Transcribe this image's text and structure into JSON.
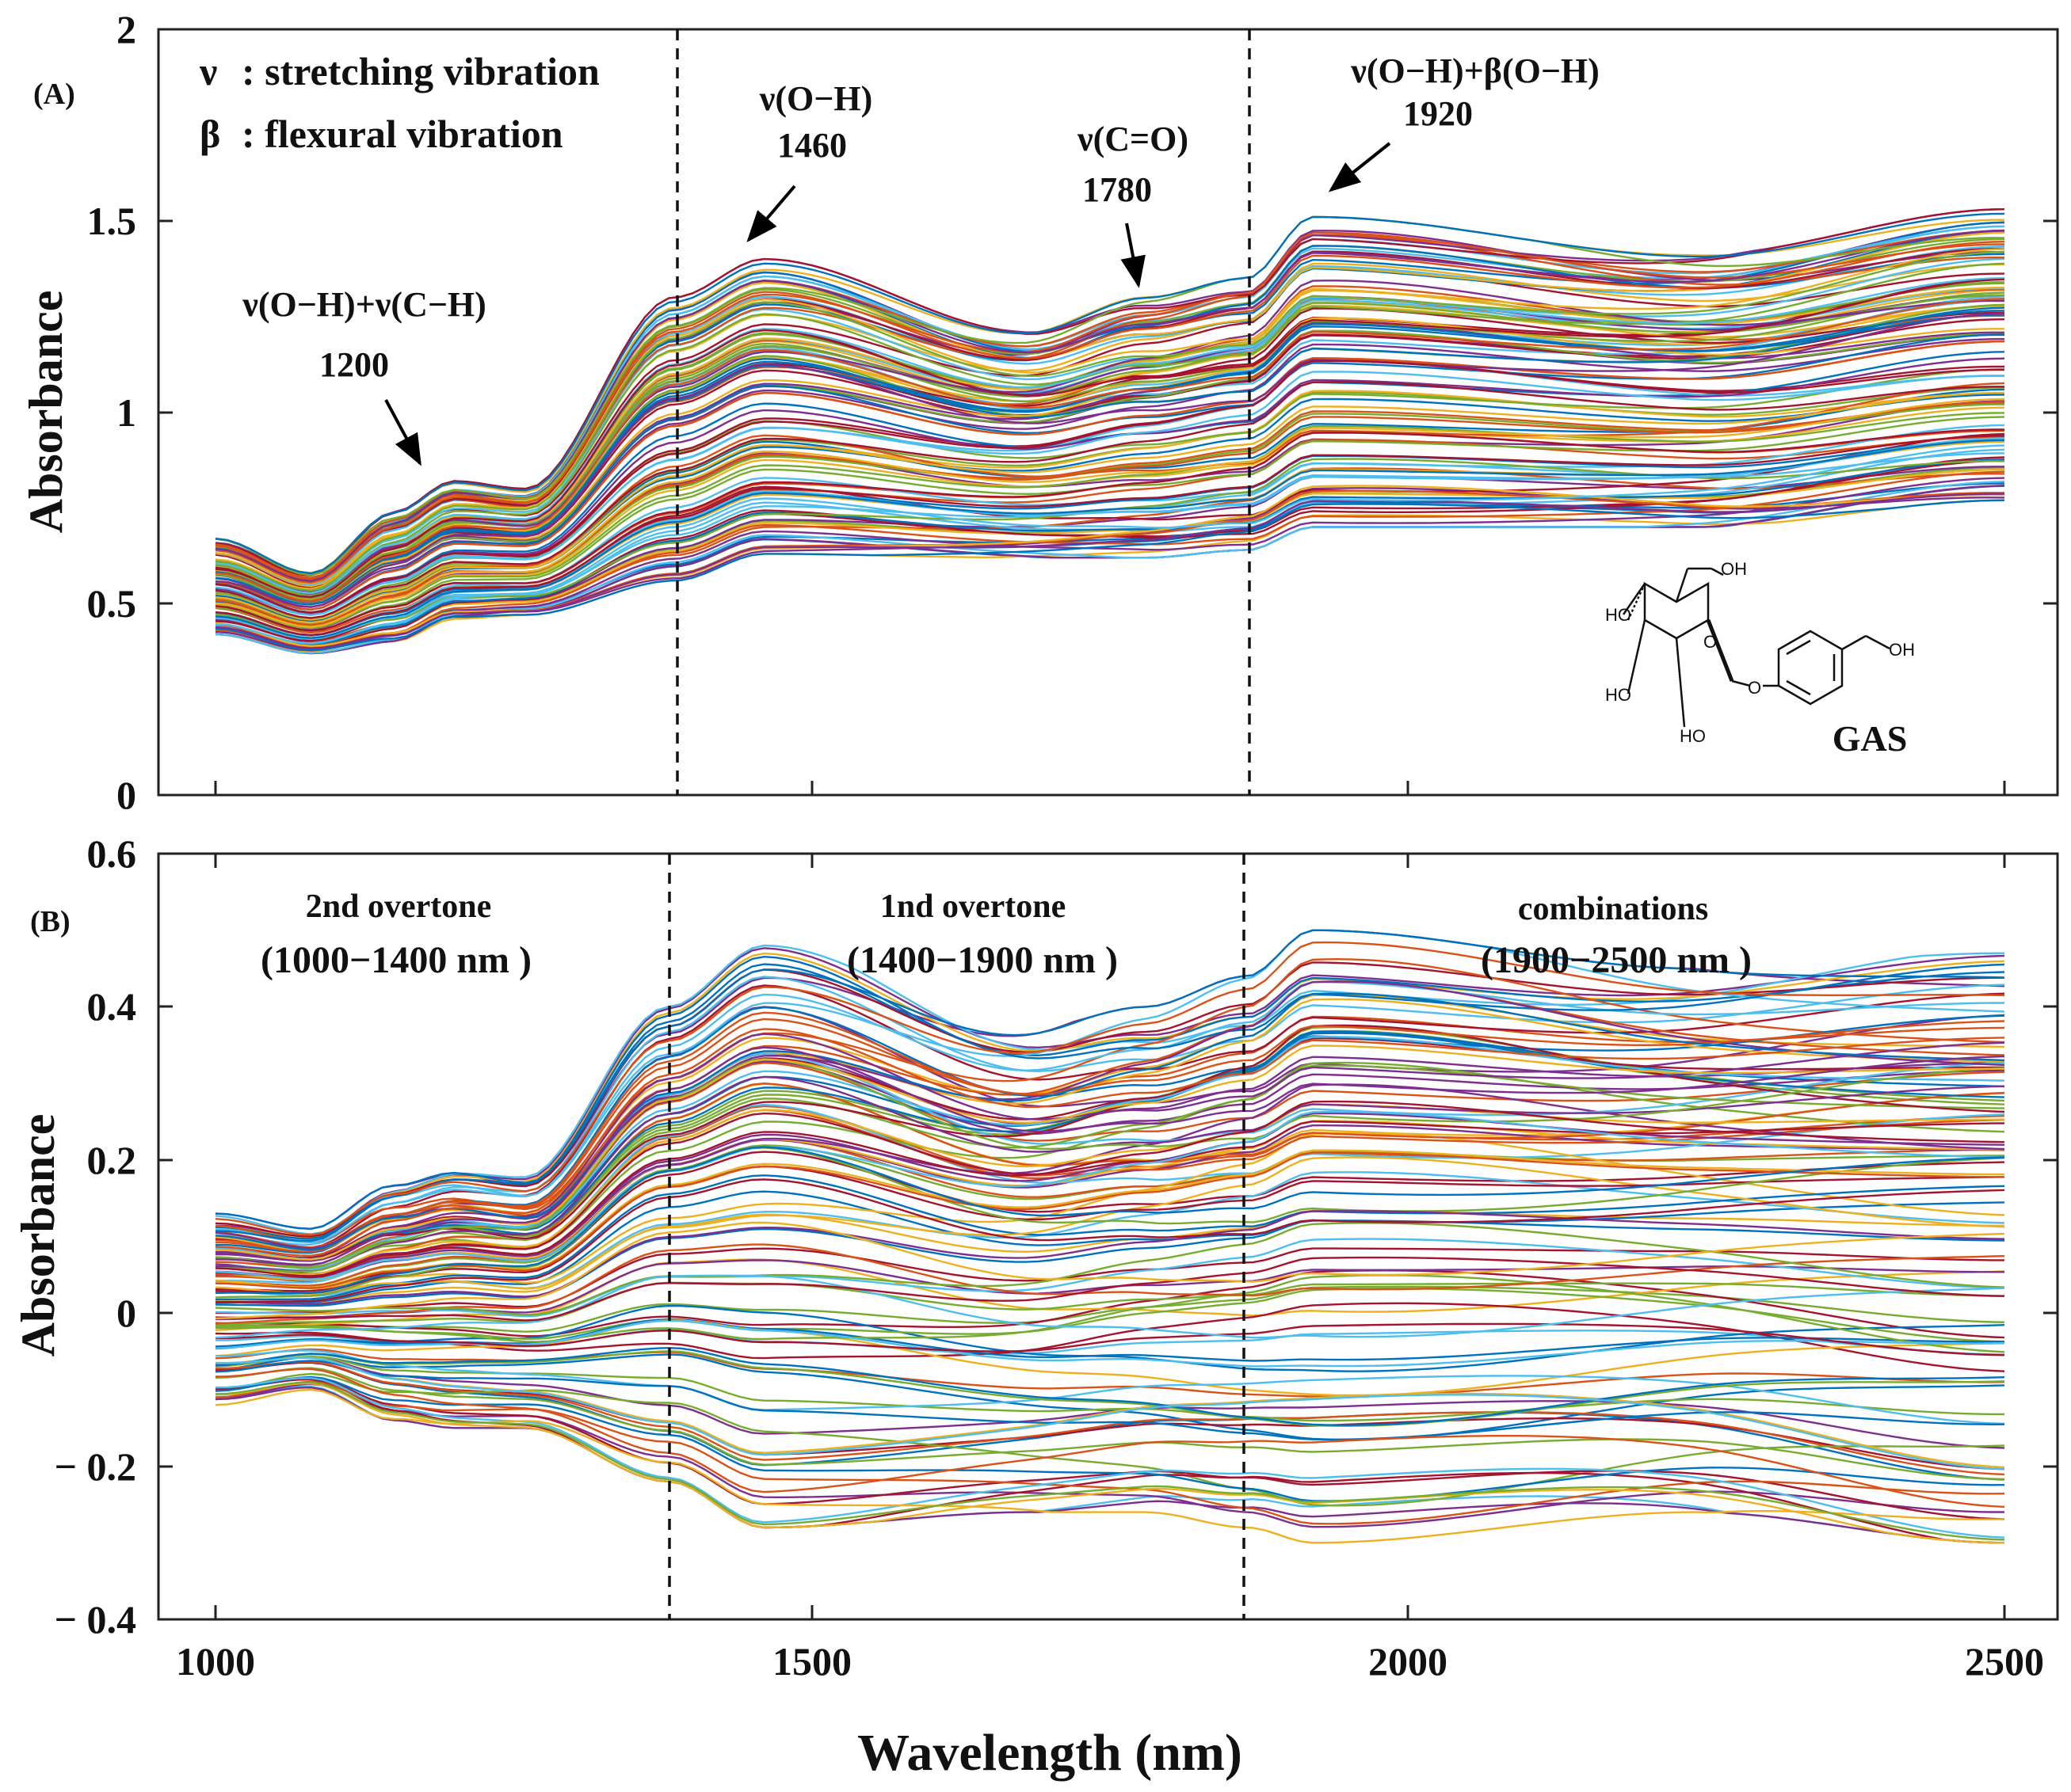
{
  "figure": {
    "xlabel": "Wavelength (nm)",
    "x_ticks": [
      "1000",
      "1500",
      "2000",
      "2500"
    ],
    "panels": [
      {
        "tag": "(A)",
        "ylabel": "Absorbance",
        "y_ticks": [
          "0",
          "0.5",
          "1",
          "1.5",
          "2"
        ],
        "legend": [
          {
            "symbol": "ν",
            "text": ": stretching vibration"
          },
          {
            "symbol": "β",
            "text": ": flexural vibration"
          }
        ],
        "annotations": [
          {
            "label": "ν(O−H)+ν(C−H)",
            "value": "1200"
          },
          {
            "label": "ν(O−H)",
            "value": "1460"
          },
          {
            "label": "ν(C=O)",
            "value": "1780"
          },
          {
            "label": "ν(O−H)+β(O−H)",
            "value": "1920"
          }
        ],
        "molecule": {
          "name": "GAS",
          "atoms": [
            "OH",
            "HO",
            "O",
            "HO",
            "HO",
            "O",
            "OH"
          ]
        }
      },
      {
        "tag": "(B)",
        "ylabel": "Absorbance",
        "y_ticks": [
          "− 0.4",
          "− 0.2",
          "0",
          "0.2",
          "0.4",
          "0.6"
        ],
        "regions": [
          {
            "name": "2nd overtone",
            "range": "(1000−1400 nm )"
          },
          {
            "name": "1nd overtone",
            "range": "(1400−1900 nm )"
          },
          {
            "name": "combinations",
            "range": "(1900−2500 nm )"
          }
        ]
      }
    ]
  },
  "chart_data": [
    {
      "type": "line",
      "panel": "A",
      "xlabel": "Wavelength (nm)",
      "ylabel": "Absorbance",
      "xlim": [
        1000,
        2500
      ],
      "ylim": [
        0,
        2
      ],
      "grid": false,
      "region_dividers_nm": [
        1385,
        1865
      ],
      "series_count": 120,
      "representative_spectrum": {
        "x": [
          1000,
          1050,
          1080,
          1120,
          1150,
          1200,
          1260,
          1300,
          1350,
          1385,
          1410,
          1460,
          1550,
          1680,
          1780,
          1840,
          1865,
          1900,
          1920,
          2000,
          2100,
          2240,
          2400,
          2500
        ],
        "y": [
          0.56,
          0.5,
          0.49,
          0.51,
          0.58,
          0.63,
          0.62,
          0.66,
          0.77,
          0.94,
          0.99,
          1.0,
          0.93,
          0.89,
          0.93,
          0.93,
          0.95,
          1.02,
          1.03,
          1.0,
          0.98,
          0.97,
          1.0,
          1.02
        ]
      },
      "envelope_upper": {
        "x": [
          1000,
          1080,
          1150,
          1200,
          1260,
          1385,
          1460,
          1680,
          1780,
          1865,
          1920,
          2240,
          2500
        ],
        "y": [
          0.67,
          0.58,
          0.74,
          0.82,
          0.8,
          1.3,
          1.4,
          1.21,
          1.3,
          1.35,
          1.51,
          1.41,
          1.53
        ]
      },
      "envelope_lower": {
        "x": [
          1000,
          1080,
          1150,
          1200,
          1260,
          1385,
          1460,
          1680,
          1780,
          1865,
          1920,
          2240,
          2500
        ],
        "y": [
          0.42,
          0.37,
          0.4,
          0.46,
          0.47,
          0.56,
          0.63,
          0.62,
          0.62,
          0.64,
          0.7,
          0.7,
          0.77
        ]
      },
      "peak_arrows": [
        {
          "label": "ν(O−H)+ν(C−H)",
          "x": 1200,
          "y": 0.84
        },
        {
          "label": "ν(O−H)",
          "x": 1460,
          "y": 1.41
        },
        {
          "label": "ν(C=O)",
          "x": 1780,
          "y": 1.31
        },
        {
          "label": "ν(O−H)+β(O−H)",
          "x": 1920,
          "y": 1.52
        }
      ]
    },
    {
      "type": "line",
      "panel": "B",
      "xlabel": "Wavelength (nm)",
      "ylabel": "Absorbance",
      "xlim": [
        1000,
        2500
      ],
      "ylim": [
        -0.4,
        0.6
      ],
      "grid": false,
      "region_dividers_nm": [
        1380,
        1865
      ],
      "series_count": 120,
      "representative_spectrum": {
        "x": [
          1000,
          1050,
          1080,
          1120,
          1150,
          1200,
          1260,
          1300,
          1350,
          1380,
          1410,
          1460,
          1550,
          1680,
          1780,
          1840,
          1865,
          1900,
          1920,
          2000,
          2100,
          2240,
          2400,
          2500
        ],
        "y": [
          0.0,
          0.0,
          0.0,
          0.0,
          0.01,
          0.01,
          0.01,
          0.01,
          0.02,
          0.02,
          0.02,
          0.02,
          0.02,
          0.02,
          0.02,
          0.02,
          0.02,
          0.02,
          0.02,
          0.02,
          0.02,
          0.02,
          0.02,
          0.02
        ]
      },
      "envelope_upper": {
        "x": [
          1000,
          1080,
          1150,
          1200,
          1260,
          1380,
          1460,
          1680,
          1780,
          1865,
          1920,
          2240,
          2500
        ],
        "y": [
          0.13,
          0.11,
          0.17,
          0.19,
          0.18,
          0.4,
          0.48,
          0.37,
          0.4,
          0.44,
          0.5,
          0.45,
          0.47
        ]
      },
      "envelope_lower": {
        "x": [
          1000,
          1080,
          1150,
          1200,
          1260,
          1380,
          1460,
          1680,
          1780,
          1865,
          1920,
          2240,
          2500
        ],
        "y": [
          -0.12,
          -0.1,
          -0.14,
          -0.15,
          -0.15,
          -0.22,
          -0.28,
          -0.26,
          -0.26,
          -0.28,
          -0.3,
          -0.26,
          -0.3
        ]
      }
    }
  ],
  "colors": {
    "palette": [
      "#0072BD",
      "#D95319",
      "#EDB120",
      "#7E2F8E",
      "#77AC30",
      "#4DBEEE",
      "#A2142F"
    ],
    "axes": "#222222",
    "divider": "#111111"
  }
}
